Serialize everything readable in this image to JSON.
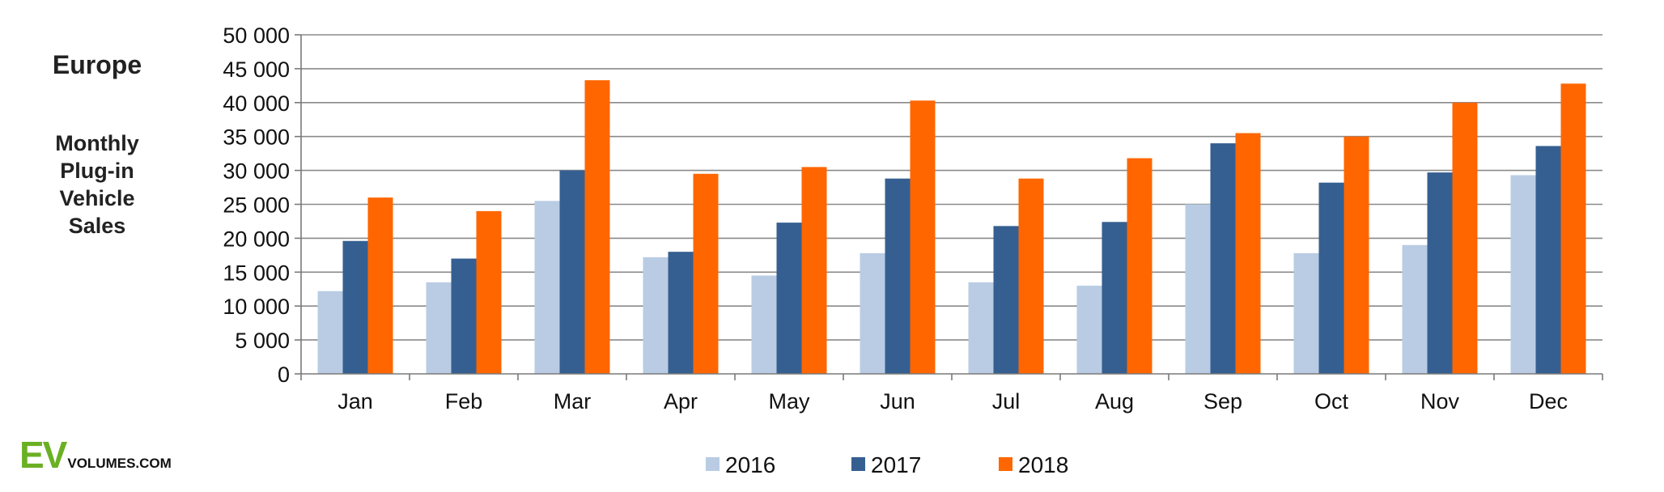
{
  "side_title": "Europe",
  "side_subtitle_lines": [
    "Monthly",
    "Plug-in",
    "Vehicle",
    "Sales"
  ],
  "logo": {
    "mark": "EV",
    "text": "VOLUMES.COM",
    "color": "#6ab023"
  },
  "chart_data": {
    "type": "bar",
    "title": "",
    "xlabel": "",
    "ylabel": "",
    "ylim": [
      0,
      50000
    ],
    "yticks": [
      0,
      5000,
      10000,
      15000,
      20000,
      25000,
      30000,
      35000,
      40000,
      45000,
      50000
    ],
    "ytick_labels": [
      "0",
      "5 000",
      "10 000",
      "15 000",
      "20 000",
      "25 000",
      "30 000",
      "35 000",
      "40 000",
      "45 000",
      "50 000"
    ],
    "grid": true,
    "legend_position": "bottom",
    "categories": [
      "Jan",
      "Feb",
      "Mar",
      "Apr",
      "May",
      "Jun",
      "Jul",
      "Aug",
      "Sep",
      "Oct",
      "Nov",
      "Dec"
    ],
    "series": [
      {
        "name": "2016",
        "color": "#b9cce4",
        "values": [
          12200,
          13500,
          25500,
          17200,
          14500,
          17800,
          13500,
          13000,
          25000,
          17800,
          19000,
          29300
        ]
      },
      {
        "name": "2017",
        "color": "#365f91",
        "values": [
          19600,
          17000,
          30000,
          18000,
          22300,
          28800,
          21800,
          22400,
          34000,
          28200,
          29700,
          33600
        ]
      },
      {
        "name": "2018",
        "color": "#ff6600",
        "values": [
          26000,
          24000,
          43300,
          29500,
          30500,
          40300,
          28800,
          31800,
          35500,
          35000,
          40000,
          42800
        ]
      }
    ]
  }
}
